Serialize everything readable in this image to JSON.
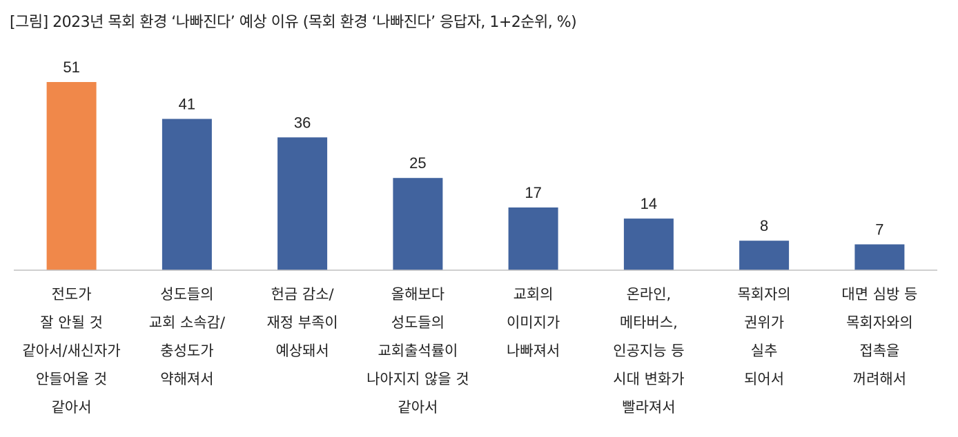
{
  "title": "[그림] 2023년 목회 환경 ‘나빠진다’ 예상 이유 (목회 환경 ‘나빠진다’ 응답자, 1+2순위, %)",
  "chart_data": {
    "type": "bar",
    "title": "[그림] 2023년 목회 환경 ‘나빠진다’ 예상 이유 (목회 환경 ‘나빠진다’ 응답자, 1+2순위, %)",
    "xlabel": "",
    "ylabel": "",
    "grid": false,
    "legend": "none",
    "ylim": [
      0,
      51
    ],
    "categories": [
      [
        "전도가",
        "잘 안될 것",
        "같아서/새신자가",
        "안들어올 것",
        "같아서"
      ],
      [
        "성도들의",
        "교회 소속감/",
        "충성도가",
        "약해져서"
      ],
      [
        "헌금 감소/",
        "재정 부족이",
        "예상돼서"
      ],
      [
        "올해보다",
        "성도들의",
        "교회출석률이",
        "나아지지 않을 것",
        "같아서"
      ],
      [
        "교회의",
        "이미지가",
        "나빠져서"
      ],
      [
        "온라인,",
        "메타버스,",
        "인공지능 등",
        "시대 변화가",
        "빨라져서"
      ],
      [
        "목회자의",
        "권위가",
        "실추",
        "되어서"
      ],
      [
        "대면 심방 등",
        "목회자와의",
        "접촉을",
        "꺼려해서"
      ]
    ],
    "values": [
      51,
      41,
      36,
      25,
      17,
      14,
      8,
      7
    ],
    "colors": {
      "highlight": "#F0884A",
      "default": "#41639E",
      "axis": "#BFBFBF"
    },
    "highlight_index": 0
  }
}
